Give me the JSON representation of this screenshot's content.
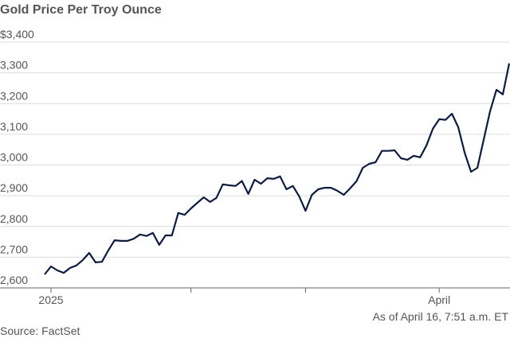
{
  "chart_data": {
    "type": "line",
    "title": "Gold Price Per Troy Ounce",
    "note": "As of April 16, 7:51 a.m. ET",
    "source": "Source: FactSet",
    "categories": [
      null,
      "2025",
      null,
      null,
      null,
      null,
      null,
      null,
      null,
      null,
      null,
      null,
      null,
      null,
      null,
      null,
      null,
      null,
      null,
      null,
      null,
      null,
      null,
      null,
      null,
      null,
      null,
      null,
      null,
      null,
      null,
      null,
      null,
      null,
      null,
      null,
      null,
      null,
      null,
      null,
      null,
      null,
      null,
      null,
      null,
      null,
      null,
      null,
      null,
      null,
      null,
      null,
      null,
      null,
      null,
      null,
      null,
      null,
      null,
      null,
      null,
      null,
      "April",
      null,
      null,
      null,
      null,
      null,
      null,
      null,
      null,
      null,
      null,
      null
    ],
    "series": [
      {
        "name": "Gold",
        "color": "#0d1b3e",
        "values": [
          2644,
          2670,
          2657,
          2649,
          2665,
          2673,
          2691,
          2714,
          2683,
          2685,
          2722,
          2755,
          2753,
          2753,
          2760,
          2774,
          2769,
          2779,
          2740,
          2771,
          2771,
          2844,
          2838,
          2859,
          2877,
          2895,
          2880,
          2893,
          2937,
          2934,
          2932,
          2948,
          2906,
          2952,
          2939,
          2957,
          2955,
          2963,
          2921,
          2932,
          2898,
          2851,
          2903,
          2921,
          2926,
          2926,
          2916,
          2903,
          2924,
          2947,
          2991,
          3004,
          3009,
          3046,
          3046,
          3048,
          3022,
          3017,
          3030,
          3025,
          3064,
          3118,
          3149,
          3147,
          3167,
          3123,
          3040,
          2978,
          2991,
          3084,
          3175,
          3245,
          3230,
          3331
        ]
      }
    ],
    "xticks": [
      1,
      23,
      41,
      62
    ],
    "ylim": [
      2600,
      3400
    ],
    "yticks": [
      {
        "value": 2600,
        "label": "2,600"
      },
      {
        "value": 2700,
        "label": "2,700"
      },
      {
        "value": 2800,
        "label": "2,800"
      },
      {
        "value": 2900,
        "label": "2,900"
      },
      {
        "value": 3000,
        "label": "3,000"
      },
      {
        "value": 3100,
        "label": "3,100"
      },
      {
        "value": 3200,
        "label": "3,200"
      },
      {
        "value": 3300,
        "label": "3,300"
      },
      {
        "value": 3400,
        "label": "$3,400"
      }
    ],
    "grid": true
  }
}
